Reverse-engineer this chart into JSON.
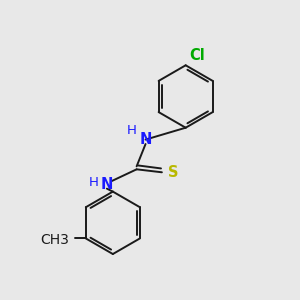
{
  "bg_color": "#e8e8e8",
  "bond_color": "#1a1a1a",
  "N_color": "#1a1aff",
  "S_color": "#b8b800",
  "Cl_color": "#00aa00",
  "N_label1": "N",
  "H_label1": "H",
  "N_label2": "N",
  "H_label2": "H",
  "S_label": "S",
  "Cl_label": "Cl",
  "CH3_label": "CH3",
  "font_size": 10.5,
  "lw": 1.4
}
